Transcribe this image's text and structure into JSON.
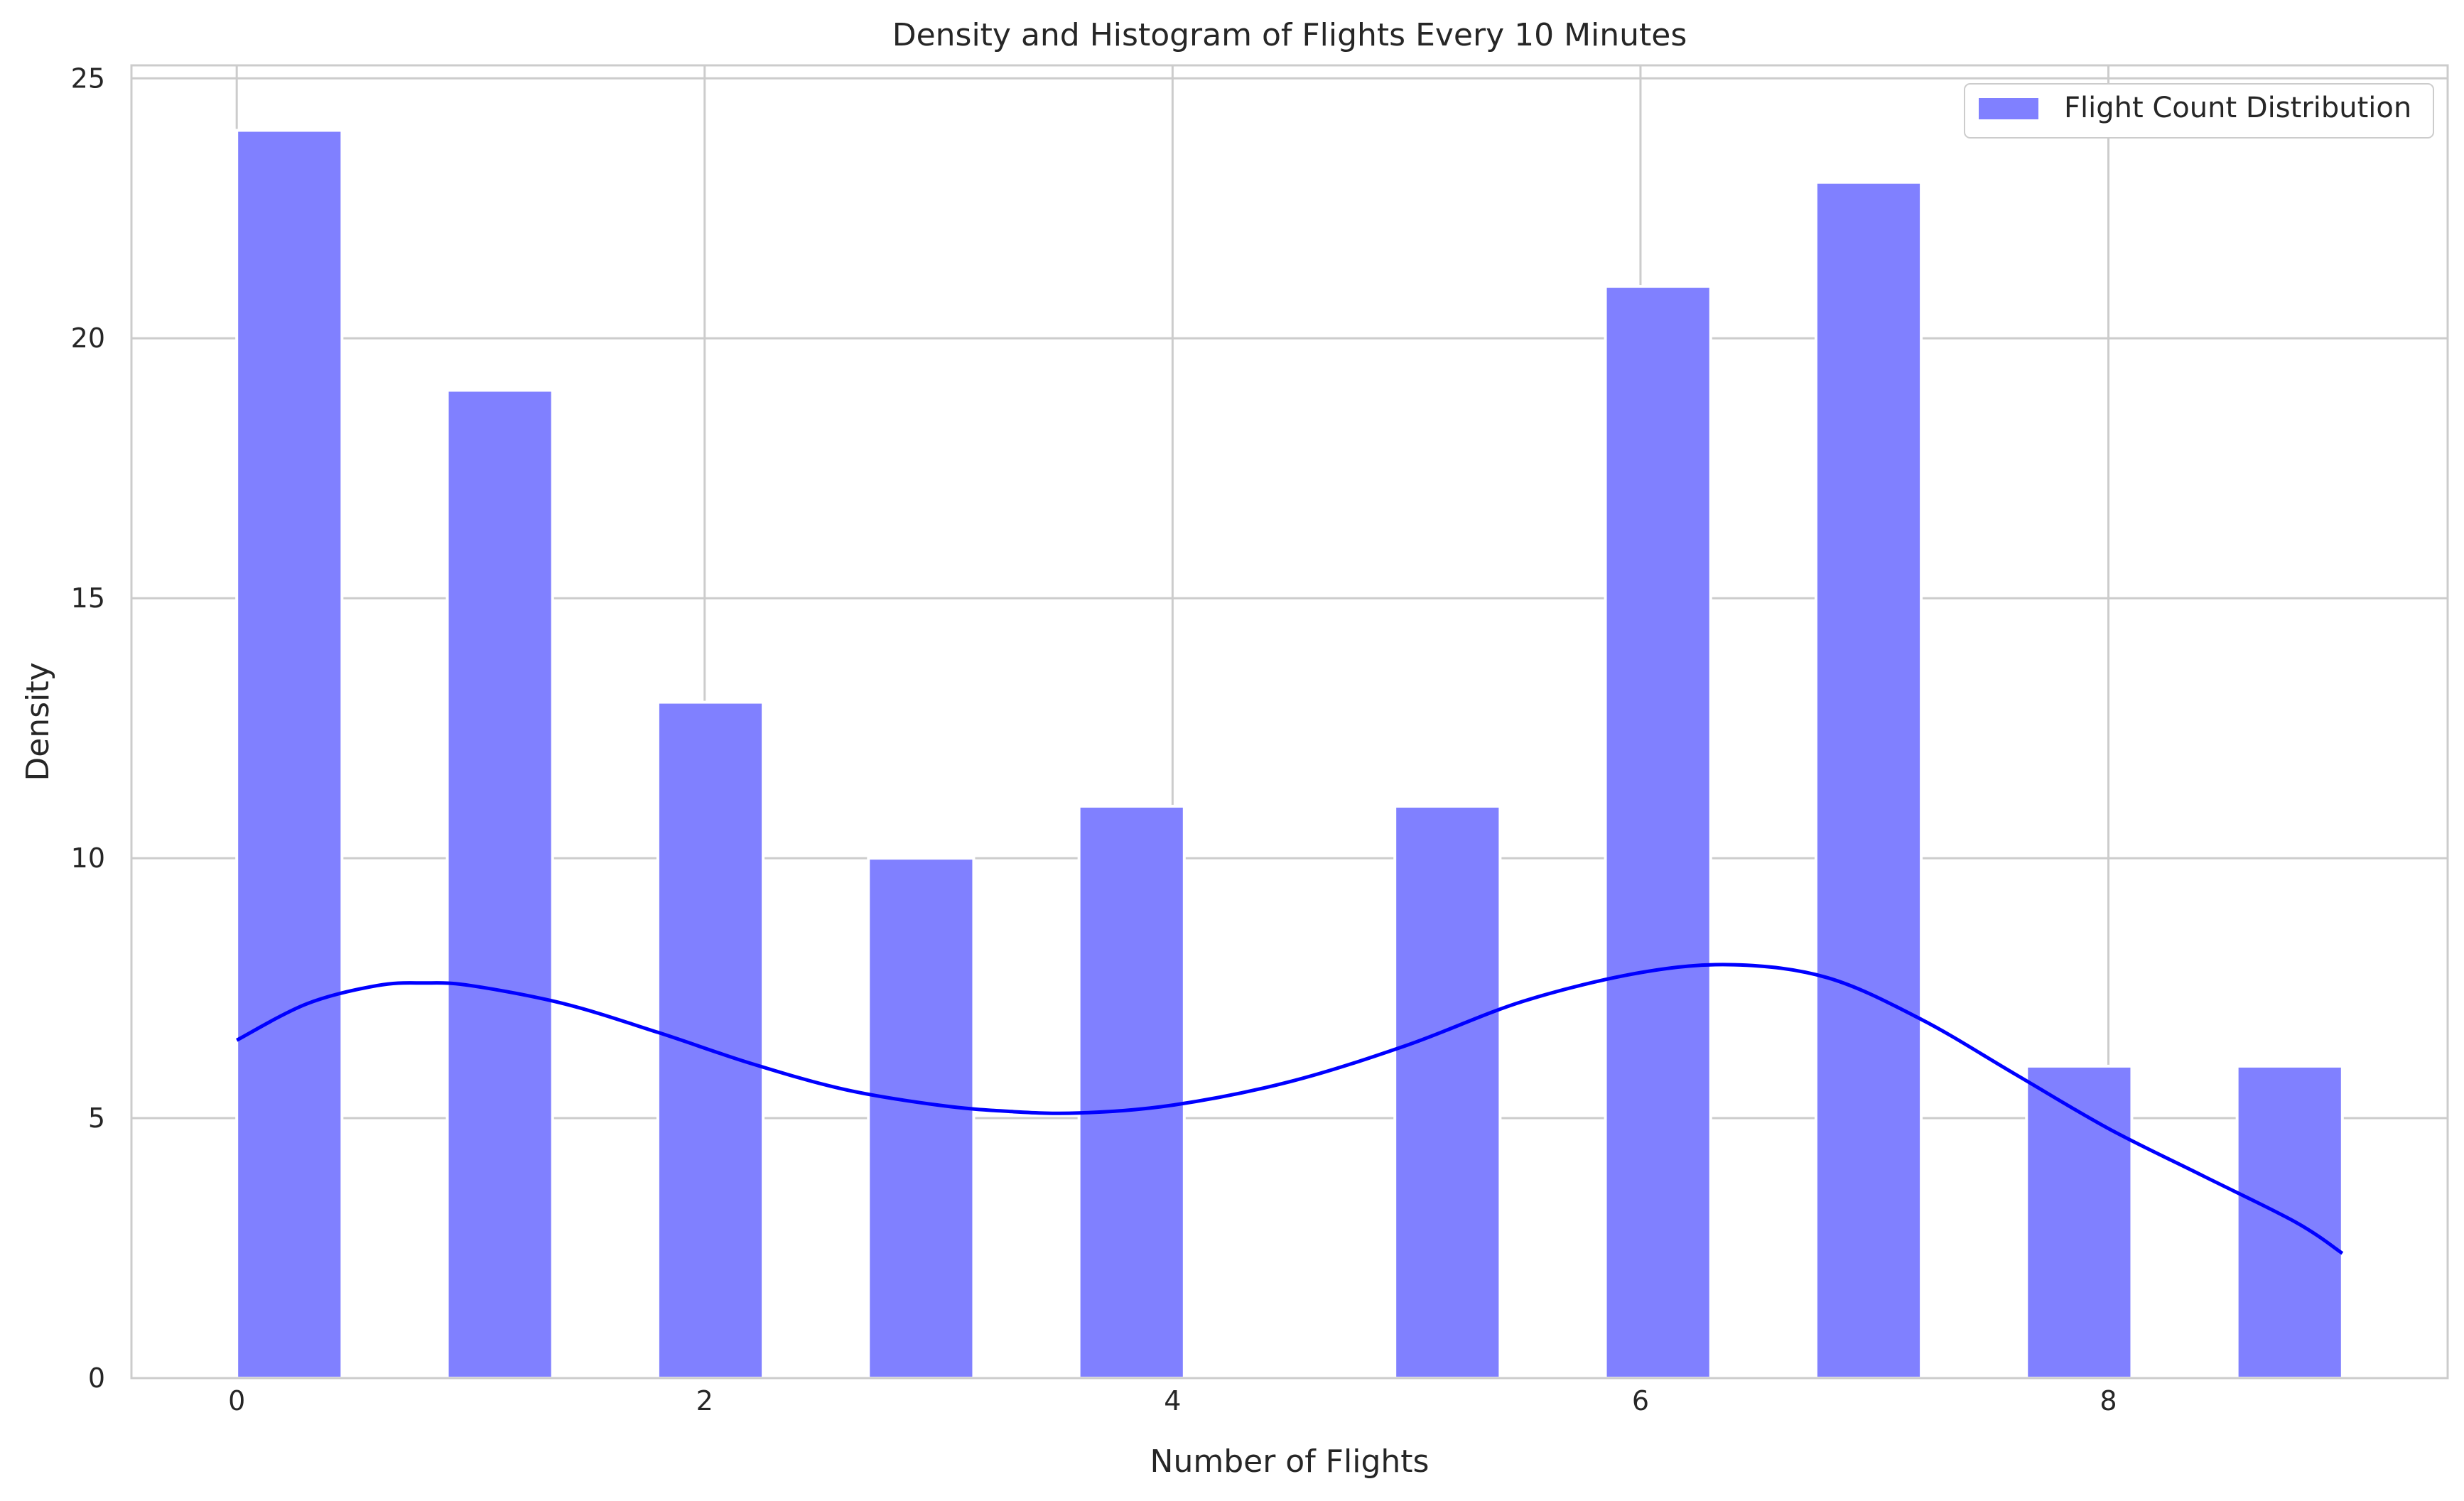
{
  "chart_data": {
    "type": "bar",
    "title": "Density and Histogram of Flights Every 10 Minutes",
    "xlabel": "Number of Flights",
    "ylabel": "Density",
    "xlim": [
      -0.45,
      9.45
    ],
    "ylim": [
      0,
      25.25
    ],
    "xticks": [
      0,
      2,
      4,
      6,
      8
    ],
    "yticks": [
      0,
      5,
      10,
      15,
      20,
      25
    ],
    "grid": true,
    "legend_position": "top-right",
    "bin_width": 0.45,
    "bars": [
      {
        "x0": 0.0,
        "value": 24
      },
      {
        "x0": 0.9,
        "value": 19
      },
      {
        "x0": 1.8,
        "value": 13
      },
      {
        "x0": 2.7,
        "value": 10
      },
      {
        "x0": 3.6,
        "value": 11
      },
      {
        "x0": 4.95,
        "value": 11
      },
      {
        "x0": 5.85,
        "value": 21
      },
      {
        "x0": 6.75,
        "value": 23
      },
      {
        "x0": 7.65,
        "value": 6
      },
      {
        "x0": 8.55,
        "value": 6
      }
    ],
    "density_curve": {
      "x": [
        0,
        0.3,
        0.6,
        0.8,
        1.0,
        1.4,
        1.8,
        2.2,
        2.6,
        3.0,
        3.3,
        3.6,
        4.0,
        4.5,
        5.0,
        5.5,
        6.0,
        6.4,
        6.8,
        7.2,
        7.6,
        8.0,
        8.4,
        8.8,
        9.0
      ],
      "y": [
        6.5,
        7.2,
        7.55,
        7.6,
        7.55,
        7.2,
        6.65,
        6.05,
        5.55,
        5.25,
        5.13,
        5.1,
        5.25,
        5.7,
        6.4,
        7.25,
        7.8,
        7.95,
        7.7,
        6.9,
        5.85,
        4.8,
        3.9,
        3.0,
        2.4
      ]
    },
    "series": [
      {
        "name": "Flight Count Distribution",
        "color": "#8080ff"
      }
    ],
    "colors": {
      "bars": "#8080ff",
      "curve": "#0000ff",
      "grid": "#cccccc",
      "spine": "#cccccc"
    }
  }
}
